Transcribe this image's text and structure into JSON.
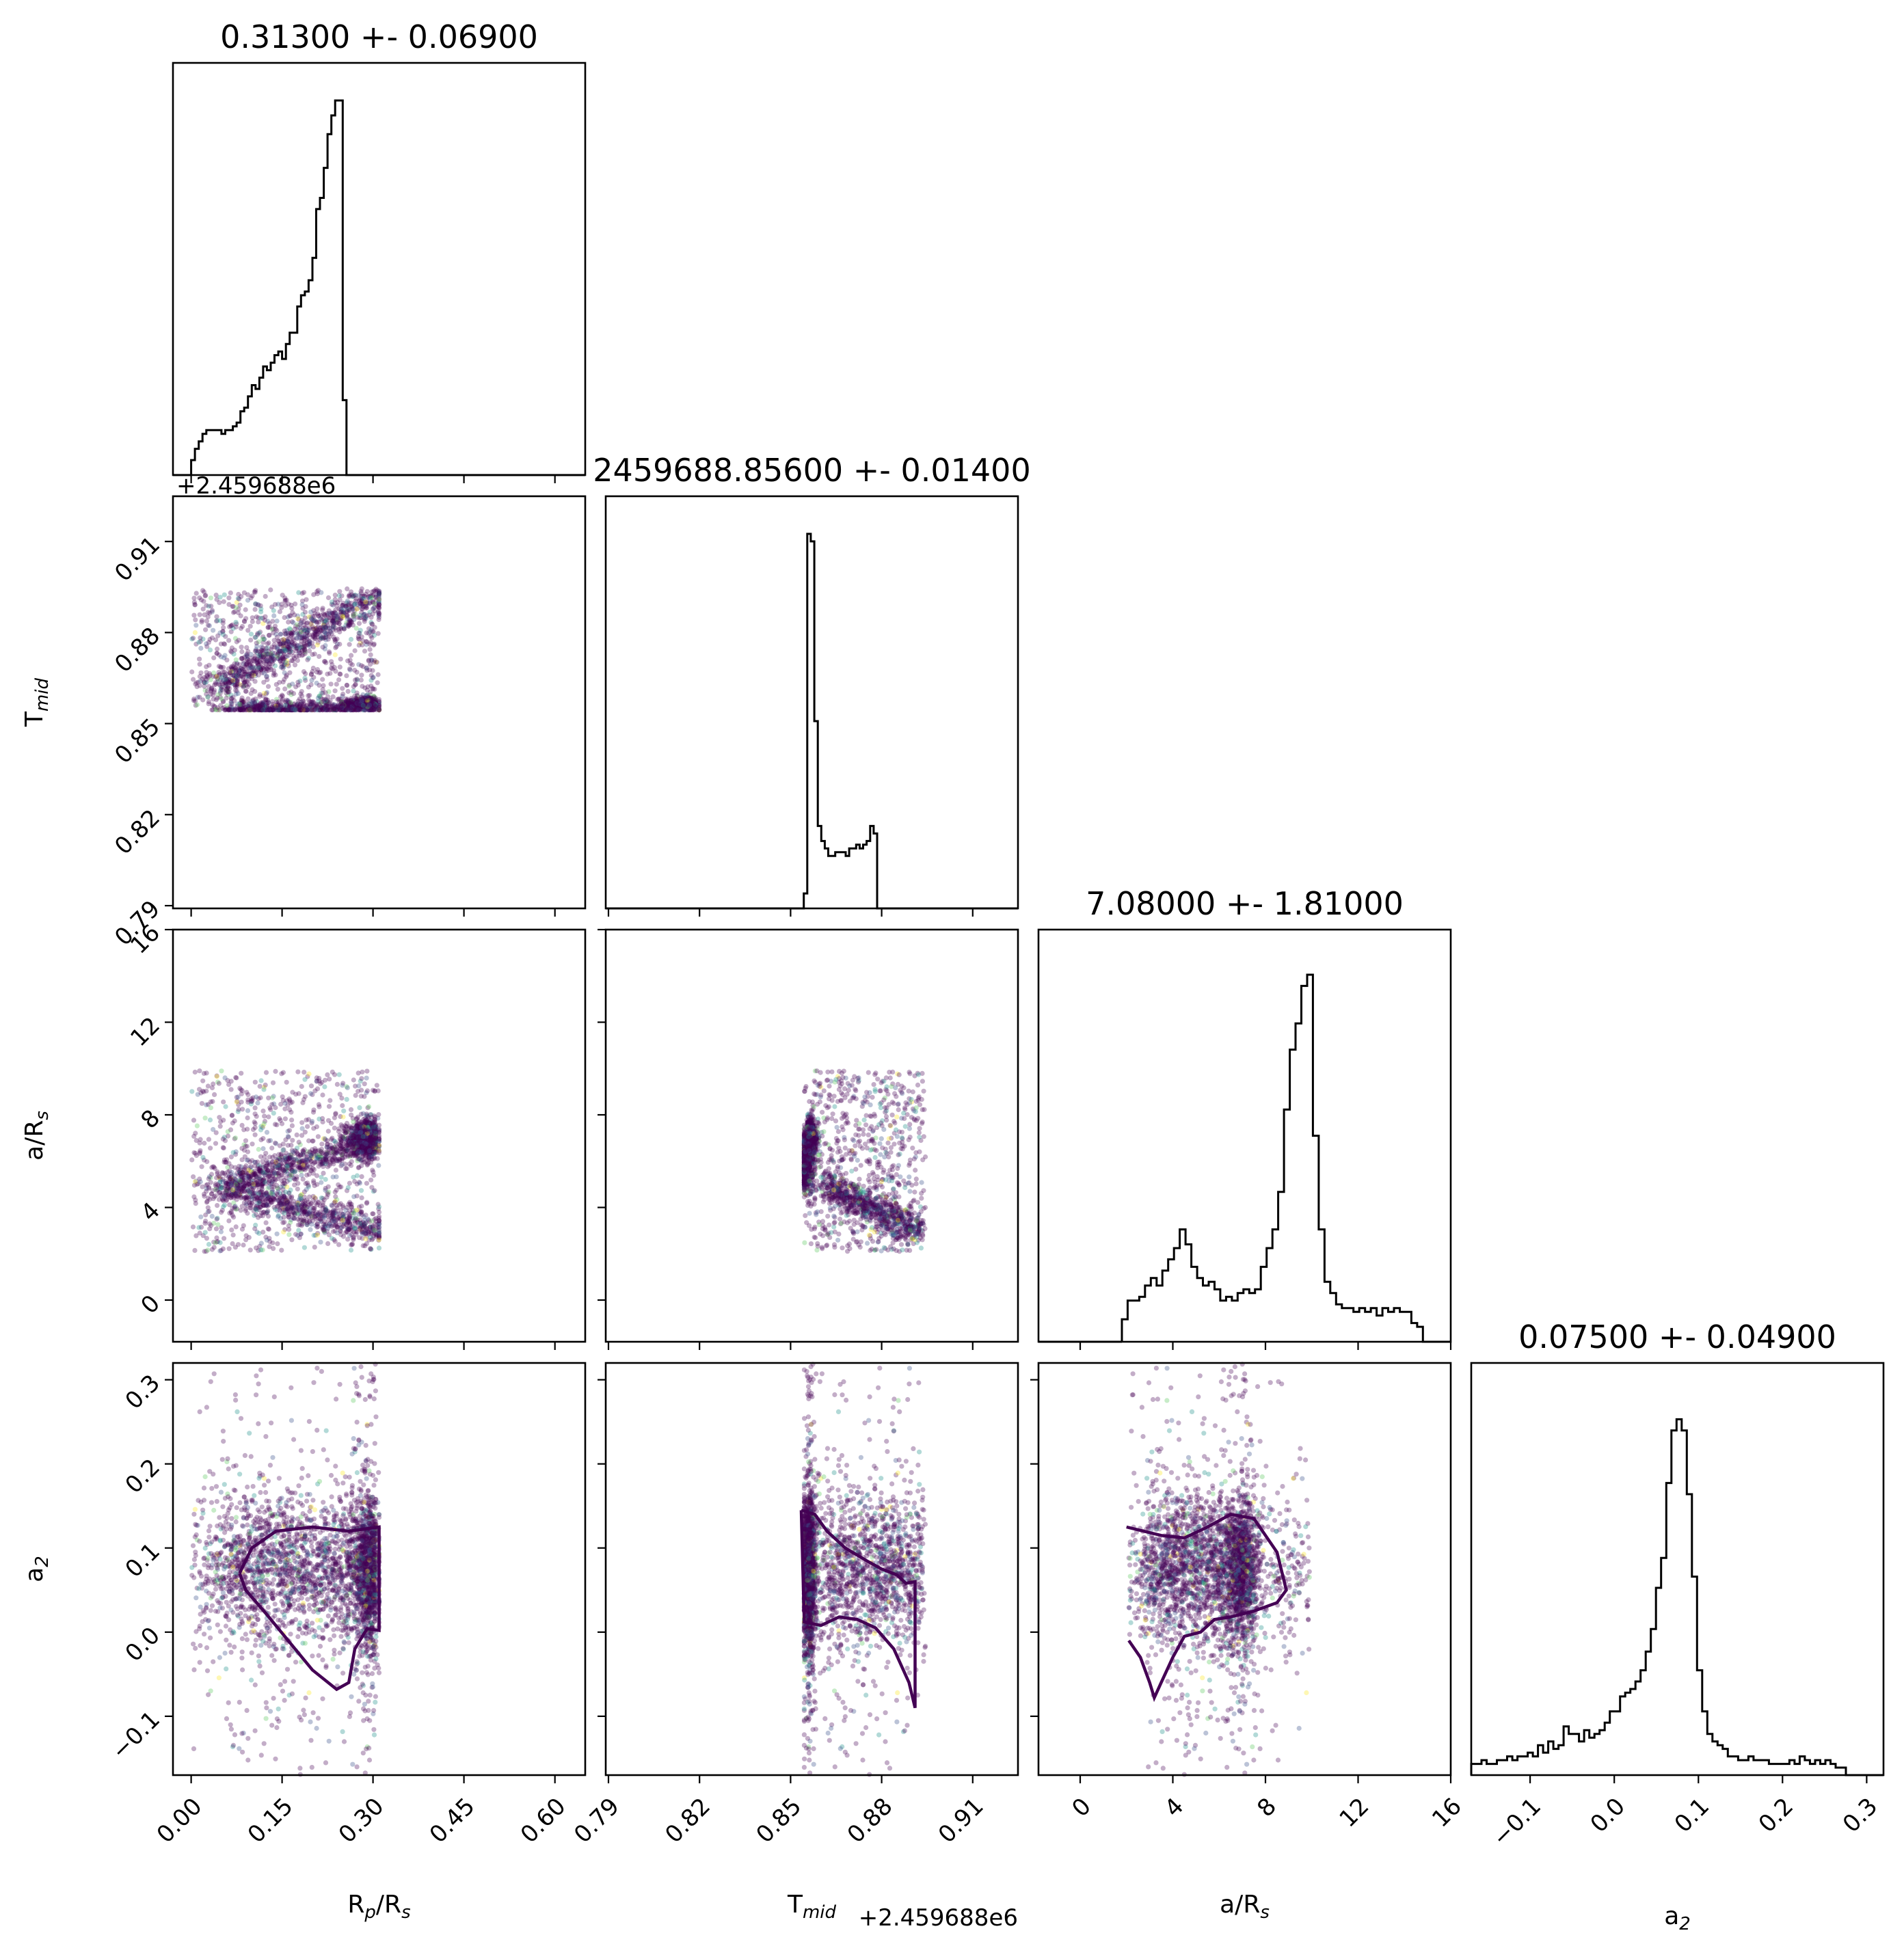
{
  "chart_data": {
    "type": "corner",
    "parameters": [
      {
        "key": "rp",
        "label": "R",
        "label_sub": "p",
        "label_post": "/R",
        "label_sub2": "s",
        "range": [
          -0.03,
          0.65
        ],
        "ticks": [
          0.0,
          0.15,
          0.3,
          0.45,
          0.6
        ],
        "tick_labels": [
          "0.00",
          "0.15",
          "0.30",
          "0.45",
          "0.60"
        ]
      },
      {
        "key": "tmid",
        "label": "T",
        "label_sub": "mid",
        "label_post": "",
        "label_sub2": "",
        "range": [
          0.7891,
          0.9249
        ],
        "ticks": [
          0.79,
          0.82,
          0.85,
          0.88,
          0.91
        ],
        "tick_labels": [
          "0.79",
          "0.82",
          "0.85",
          "0.88",
          "0.91"
        ],
        "offset_text": "+2.459688e6"
      },
      {
        "key": "ars",
        "label": "a/R",
        "label_sub": "s",
        "label_post": "",
        "label_sub2": "",
        "range": [
          -1.8,
          16.0
        ],
        "ticks": [
          0,
          4,
          8,
          12,
          16
        ],
        "tick_labels": [
          "0",
          "4",
          "8",
          "12",
          "16"
        ]
      },
      {
        "key": "a2",
        "label": "a",
        "label_sub": "2",
        "label_post": "",
        "label_sub2": "",
        "range": [
          -0.17,
          0.32
        ],
        "ticks": [
          -0.1,
          0.0,
          0.1,
          0.2,
          0.3
        ],
        "tick_labels": [
          "−0.1",
          "0.0",
          "0.1",
          "0.2",
          "0.3"
        ]
      }
    ],
    "titles": [
      "0.31300 +- 0.06900",
      "2459688.85600 +- 0.01400",
      "7.08000 +- 1.81000",
      "0.07500 +- 0.04900"
    ],
    "marginal_offset_label": "+2.459688e6",
    "histograms": [
      {
        "param": "rp",
        "edges_start": 0.0,
        "bin_width": 0.00625,
        "counts": [
          4,
          7,
          9,
          11,
          12,
          12,
          12,
          12,
          11,
          12,
          12,
          13,
          14,
          17,
          18,
          21,
          24,
          23,
          26,
          29,
          28,
          30,
          32,
          33,
          31,
          35,
          38,
          38,
          45,
          48,
          49,
          52,
          58,
          71,
          74,
          82,
          91,
          96,
          100,
          100,
          20
        ],
        "scale_max": 100
      },
      {
        "param": "tmid",
        "edges_start": 0.8532,
        "bin_width": 0.00115,
        "counts": [
          0,
          4,
          100,
          98,
          50,
          22,
          18,
          16,
          14,
          14,
          15,
          15,
          15,
          14,
          16,
          16,
          17,
          16,
          17,
          18,
          22,
          20,
          0
        ],
        "scale_max": 100
      },
      {
        "param": "ars",
        "edges_start": 1.8,
        "bin_width": 0.25,
        "counts": [
          6,
          11,
          11,
          12,
          15,
          17,
          15,
          19,
          22,
          25,
          30,
          26,
          20,
          17,
          15,
          16,
          14,
          11,
          12,
          11,
          13,
          14,
          13,
          14,
          20,
          25,
          30,
          40,
          62,
          78,
          85,
          95,
          98,
          55,
          30,
          16,
          13,
          10,
          9,
          9,
          8,
          9,
          8,
          9,
          7,
          9,
          8,
          9,
          8,
          8,
          5,
          4,
          0,
          0
        ],
        "scale_max": 100
      },
      {
        "param": "a2",
        "edges_start": -0.17,
        "bin_width": 0.0061,
        "counts": [
          3,
          3,
          4,
          3,
          3,
          4,
          4,
          5,
          4,
          5,
          5,
          6,
          5,
          8,
          6,
          9,
          7,
          8,
          13,
          11,
          11,
          9,
          12,
          10,
          11,
          12,
          14,
          17,
          17,
          21,
          22,
          23,
          25,
          28,
          33,
          39,
          50,
          58,
          78,
          92,
          95,
          92,
          75,
          53,
          28,
          17,
          11,
          9,
          8,
          7,
          5,
          5,
          4,
          4,
          5,
          4,
          4,
          4,
          3,
          3,
          3,
          3,
          4,
          3,
          5,
          4,
          3,
          4,
          3,
          4,
          3,
          2,
          2
        ],
        "scale_max": 100
      }
    ],
    "scatter_color": "#440154",
    "contour_color": "#440154",
    "scatter_palette": [
      "#440154",
      "#3b528b",
      "#21918c",
      "#5ec962",
      "#fde725"
    ],
    "contours": [
      {
        "x": "rp",
        "y": "a2",
        "loops": [
          [
            [
              0.08,
              0.07
            ],
            [
              0.1,
              0.1
            ],
            [
              0.14,
              0.12
            ],
            [
              0.2,
              0.125
            ],
            [
              0.26,
              0.12
            ],
            [
              0.31,
              0.125
            ],
            [
              0.31,
              0.002
            ],
            [
              0.29,
              0.004
            ],
            [
              0.27,
              -0.02
            ],
            [
              0.26,
              -0.06
            ],
            [
              0.24,
              -0.068
            ],
            [
              0.2,
              -0.045
            ],
            [
              0.16,
              -0.01
            ],
            [
              0.12,
              0.025
            ],
            [
              0.09,
              0.05
            ],
            [
              0.08,
              0.07
            ]
          ]
        ]
      },
      {
        "x": "tmid",
        "y": "a2",
        "loops": [
          [
            [
              0.8535,
              0.145
            ],
            [
              0.858,
              0.14
            ],
            [
              0.862,
              0.12
            ],
            [
              0.868,
              0.1
            ],
            [
              0.875,
              0.085
            ],
            [
              0.88,
              0.075
            ],
            [
              0.885,
              0.068
            ],
            [
              0.888,
              0.058
            ],
            [
              0.891,
              0.06
            ],
            [
              0.891,
              -0.09
            ],
            [
              0.889,
              -0.06
            ],
            [
              0.884,
              -0.02
            ],
            [
              0.878,
              0.005
            ],
            [
              0.872,
              0.015
            ],
            [
              0.866,
              0.018
            ],
            [
              0.86,
              0.008
            ],
            [
              0.8545,
              0.012
            ],
            [
              0.8535,
              0.145
            ]
          ]
        ]
      },
      {
        "x": "ars",
        "y": "a2",
        "loops": [
          [
            [
              2.0,
              0.125
            ],
            [
              3.5,
              0.115
            ],
            [
              4.5,
              0.112
            ],
            [
              5.5,
              0.125
            ],
            [
              6.5,
              0.14
            ],
            [
              7.5,
              0.135
            ],
            [
              8.5,
              0.095
            ],
            [
              8.9,
              0.05
            ],
            [
              8.5,
              0.035
            ],
            [
              7.5,
              0.025
            ],
            [
              6.5,
              0.018
            ],
            [
              5.8,
              0.015
            ],
            [
              5.2,
              0.0
            ],
            [
              4.5,
              -0.005
            ],
            [
              4.0,
              -0.03
            ],
            [
              3.5,
              -0.06
            ],
            [
              3.2,
              -0.078
            ],
            [
              3.0,
              -0.06
            ],
            [
              2.6,
              -0.03
            ],
            [
              2.1,
              -0.01
            ]
          ]
        ]
      }
    ]
  }
}
